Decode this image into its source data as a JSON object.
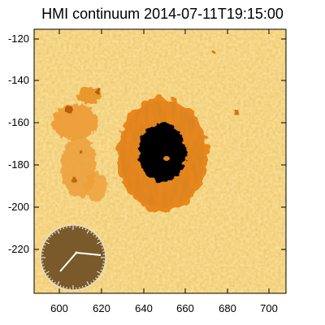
{
  "title": "HMI continuum 2014-07-11T19:15:00",
  "image": {
    "subject": "sunspot",
    "colormap": [
      "#fbe8a6",
      "#f6c66a",
      "#ee9a2c",
      "#e47a0e",
      "#000000"
    ]
  },
  "axes": {
    "x": {
      "ticks": [
        "600",
        "620",
        "640",
        "660",
        "680",
        "700"
      ],
      "range": [
        587,
        708
      ]
    },
    "y": {
      "ticks": [
        "-120",
        "-140",
        "-160",
        "-180",
        "-200",
        "-220"
      ],
      "range": [
        -240,
        -115
      ]
    }
  },
  "inset": {
    "type": "clock-dial",
    "tick_marks": 60,
    "hands": 2
  }
}
